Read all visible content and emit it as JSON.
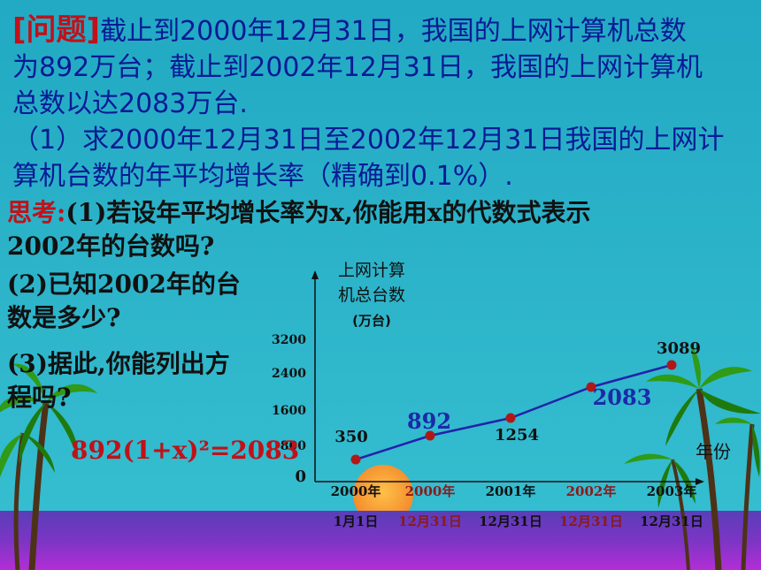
{
  "problem": {
    "tag": "[问题]",
    "line1": "截止到2000年12月31日，我国的上网计算机总数",
    "line2": "为892万台；截止到2002年12月31日，我国的上网计算机",
    "line3": "总数以达2083万台.",
    "line4": "（1）求2000年12月31日至2002年12月31日我国的上网计",
    "line5": "算机台数的年平均增长率（精确到0.1%）."
  },
  "thinking": {
    "tag": "思考:",
    "q1_line1": "(1)若设年平均增长率为x,你能用x的代数式表示",
    "q1_line2": "2002年的台数吗?",
    "q2_line1": "(2)已知2002年的台",
    "q2_line2": "数是多少?",
    "q3_line1": "(3)据此,你能列出方",
    "q3_line2": "程吗?",
    "equation": "892(1+x)²=2083"
  },
  "chart_data": {
    "type": "line",
    "ylabel_lines": [
      "上网计算",
      "机总台数",
      "(万台)"
    ],
    "xlabel": "年份",
    "yticks": [
      0,
      800,
      1600,
      2400,
      3200
    ],
    "ylim": [
      0,
      3200
    ],
    "categories": [
      {
        "year": "2000年",
        "date": "1月1日",
        "color": "#111111"
      },
      {
        "year": "2000年",
        "date": "12月31日",
        "color": "#8b1a1a"
      },
      {
        "year": "2001年",
        "date": "12月31日",
        "color": "#111111"
      },
      {
        "year": "2002年",
        "date": "12月31日",
        "color": "#8b1a1a"
      },
      {
        "year": "2003年",
        "date": "12月31日",
        "color": "#111111"
      }
    ],
    "series": [
      {
        "values": [
          350,
          892,
          1254,
          2083,
          3089
        ]
      }
    ],
    "data_labels": [
      {
        "text": "350",
        "color": "#111111"
      },
      {
        "text": "892",
        "color": "#1a2aa8"
      },
      {
        "text": "1254",
        "color": "#111111"
      },
      {
        "text": "2083",
        "color": "#1a2aa8"
      },
      {
        "text": "3089",
        "color": "#111111"
      }
    ],
    "line_color": "#2222aa",
    "point_color": "#b01818"
  },
  "colors": {
    "sky": "#2ab0c7",
    "sea_top": "#6a3fb6",
    "sea_bottom": "#a02dd0",
    "sun": "#f39a34",
    "palm": "#2f9b16",
    "trunk": "#5a3a1c"
  }
}
